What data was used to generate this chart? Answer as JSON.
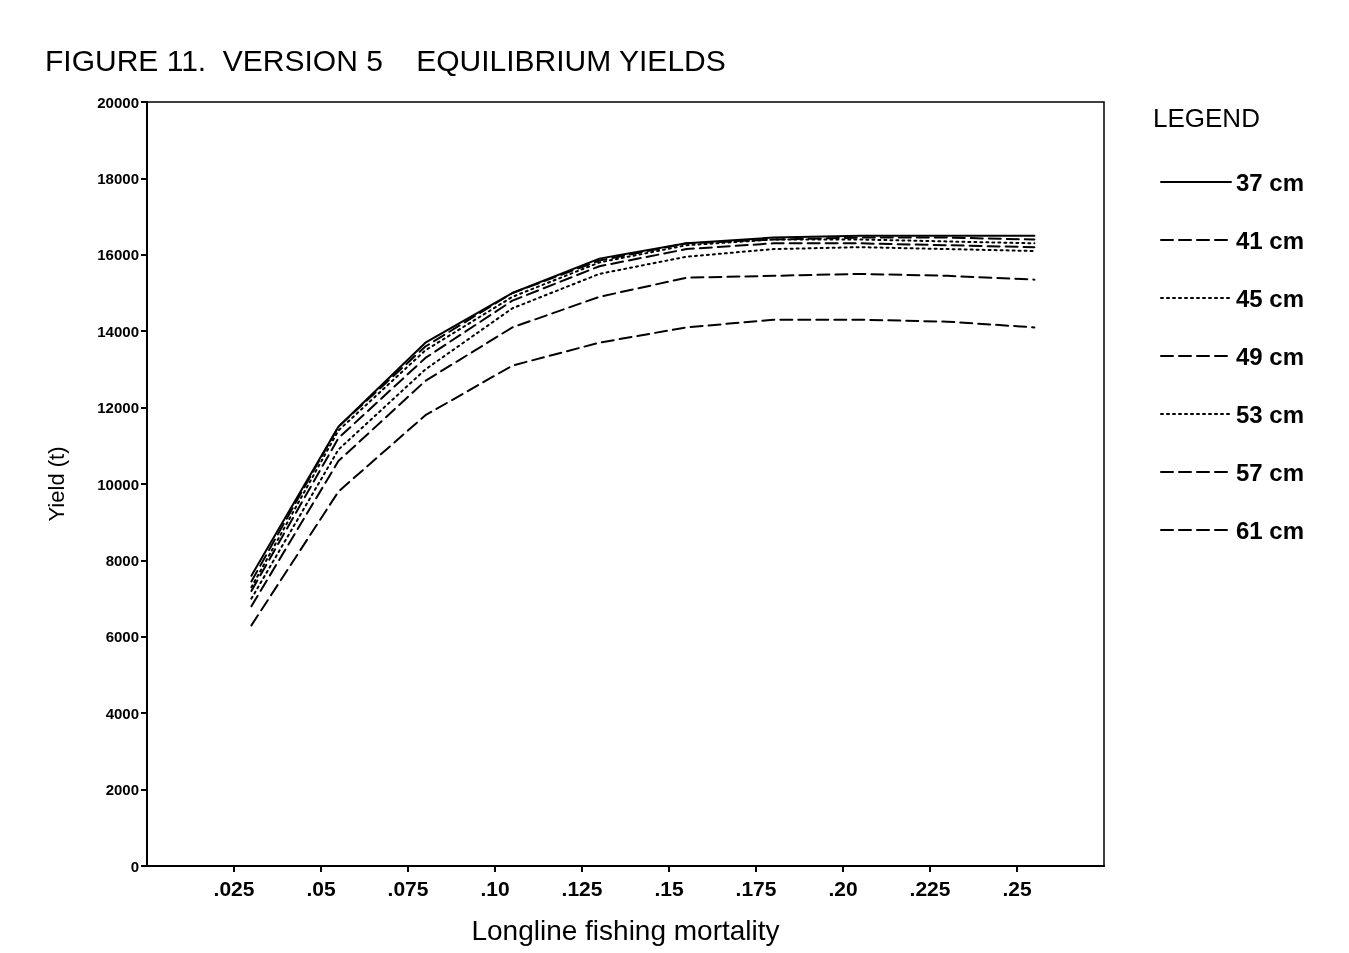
{
  "chart_data": {
    "type": "line",
    "title": "FIGURE 11.  VERSION 5    EQUILIBRIUM YIELDS",
    "xlabel": "Longline fishing mortality",
    "ylabel": "Yield (t)",
    "legend_title": "LEGEND",
    "x": [
      0.03,
      0.055,
      0.08,
      0.105,
      0.13,
      0.155,
      0.18,
      0.205,
      0.23,
      0.255
    ],
    "series": [
      {
        "name": "37 cm",
        "color": "#000000",
        "line_style": "solid",
        "values": [
          7600,
          11500,
          13700,
          15000,
          15900,
          16300,
          16450,
          16500,
          16500,
          16500
        ]
      },
      {
        "name": "41 cm",
        "color": "#000000",
        "line_style": "dashed",
        "values": [
          7450,
          11500,
          13600,
          15000,
          15850,
          16300,
          16400,
          16450,
          16450,
          16400
        ]
      },
      {
        "name": "45 cm",
        "color": "#000000",
        "line_style": "dotted",
        "values": [
          7300,
          11400,
          13500,
          14900,
          15800,
          16250,
          16400,
          16400,
          16350,
          16300
        ]
      },
      {
        "name": "49 cm",
        "color": "#000000",
        "line_style": "dashed",
        "values": [
          7200,
          11200,
          13300,
          14800,
          15700,
          16150,
          16300,
          16300,
          16250,
          16200
        ]
      },
      {
        "name": "53 cm",
        "color": "#000000",
        "line_style": "dotted",
        "values": [
          7000,
          10900,
          13000,
          14600,
          15500,
          15950,
          16150,
          16200,
          16150,
          16100
        ]
      },
      {
        "name": "57 cm",
        "color": "#000000",
        "line_style": "dashed",
        "values": [
          6800,
          10600,
          12700,
          14100,
          14900,
          15400,
          15450,
          15500,
          15450,
          15350
        ]
      },
      {
        "name": "61 cm",
        "color": "#000000",
        "line_style": "dashed",
        "values": [
          6300,
          9800,
          11800,
          13100,
          13700,
          14100,
          14300,
          14300,
          14250,
          14100
        ]
      }
    ],
    "xlim": [
      0,
      0.275
    ],
    "xticks": [
      {
        "value": 0.025,
        "label": ".025"
      },
      {
        "value": 0.05,
        "label": ".05"
      },
      {
        "value": 0.075,
        "label": ".075"
      },
      {
        "value": 0.1,
        "label": ".10"
      },
      {
        "value": 0.125,
        "label": ".125"
      },
      {
        "value": 0.15,
        "label": ".15"
      },
      {
        "value": 0.175,
        "label": ".175"
      },
      {
        "value": 0.2,
        "label": ".20"
      },
      {
        "value": 0.225,
        "label": ".225"
      },
      {
        "value": 0.25,
        "label": ".25"
      }
    ],
    "ylim": [
      0,
      20000
    ],
    "yticks": [
      0,
      2000,
      4000,
      6000,
      8000,
      10000,
      12000,
      14000,
      16000,
      18000,
      20000
    ],
    "grid": false,
    "legend": "right",
    "marker": "none"
  }
}
